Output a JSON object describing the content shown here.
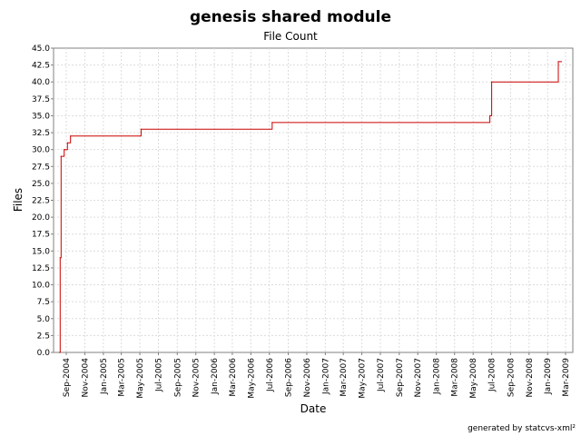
{
  "chart_data": {
    "type": "line",
    "title": "genesis shared module",
    "subtitle": "File Count",
    "xlabel": "Date",
    "ylabel": "Files",
    "footer": "generated by statcvs-xml²",
    "ylim": [
      0,
      45
    ],
    "y_ticks": [
      "0.0",
      "2.5",
      "5.0",
      "7.5",
      "10.0",
      "12.5",
      "15.0",
      "17.5",
      "20.0",
      "22.5",
      "25.0",
      "27.5",
      "30.0",
      "32.5",
      "35.0",
      "37.5",
      "40.0",
      "42.5",
      "45.0"
    ],
    "x_ticks": [
      "Sep-2004",
      "Nov-2004",
      "Jan-2005",
      "Mar-2005",
      "May-2005",
      "Jul-2005",
      "Sep-2005",
      "Nov-2005",
      "Jan-2006",
      "Mar-2006",
      "May-2006",
      "Jul-2006",
      "Sep-2006",
      "Nov-2006",
      "Jan-2007",
      "Mar-2007",
      "May-2007",
      "Jul-2007",
      "Sep-2007",
      "Nov-2007",
      "Jan-2008",
      "Mar-2008",
      "May-2008",
      "Jul-2008",
      "Sep-2008",
      "Nov-2008",
      "Jan-2009",
      "Mar-2009"
    ],
    "grid": true,
    "line_color": "#cc0000",
    "series": [
      {
        "name": "Files",
        "step": true,
        "points": [
          {
            "x": "2004-08-10",
            "y": 0
          },
          {
            "x": "2004-08-12",
            "y": 14
          },
          {
            "x": "2004-08-15",
            "y": 29
          },
          {
            "x": "2004-08-25",
            "y": 30
          },
          {
            "x": "2004-09-05",
            "y": 31
          },
          {
            "x": "2004-09-15",
            "y": 32
          },
          {
            "x": "2005-05-05",
            "y": 33
          },
          {
            "x": "2006-07-10",
            "y": 34
          },
          {
            "x": "2008-06-25",
            "y": 35
          },
          {
            "x": "2008-07-01",
            "y": 40
          },
          {
            "x": "2009-02-05",
            "y": 43
          },
          {
            "x": "2009-02-15",
            "y": 43
          }
        ]
      }
    ]
  }
}
